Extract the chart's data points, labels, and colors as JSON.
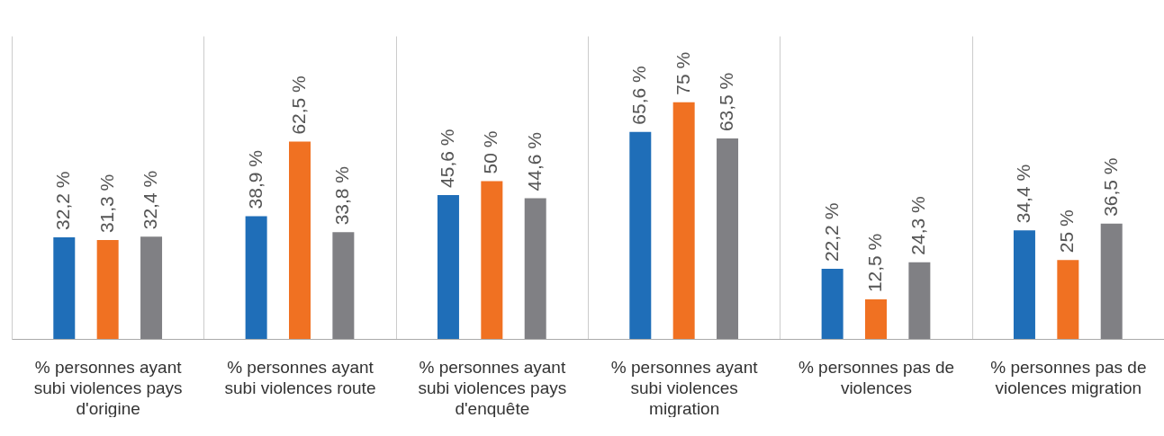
{
  "chart_data": {
    "type": "bar",
    "categories": [
      "% personnes ayant subi violences pays d'origine",
      "% personnes ayant subi violences route",
      "% personnes ayant subi violences pays d'enquête",
      "% personnes ayant subi violences migration",
      "% personnes pas de violences",
      "% personnes pas de violences migration"
    ],
    "series": [
      {
        "color": "#1f6eb8",
        "values": [
          32.2,
          38.9,
          45.6,
          65.6,
          22.2,
          34.4
        ],
        "value_labels": [
          "32,2 %",
          "38,9 %",
          "45,6 %",
          "65,6 %",
          "22,2 %",
          "34,4 %"
        ]
      },
      {
        "color": "#f07122",
        "values": [
          31.3,
          62.5,
          50,
          75,
          12.5,
          25
        ],
        "value_labels": [
          "31,3 %",
          "62,5 %",
          "50 %",
          "75 %",
          "12,5 %",
          "25 %"
        ]
      },
      {
        "color": "#808084",
        "values": [
          32.4,
          33.8,
          44.6,
          63.5,
          24.3,
          36.5
        ],
        "value_labels": [
          "32,4 %",
          "33,8 %",
          "44,6 %",
          "63,5 %",
          "24,3 %",
          "36,5 %"
        ]
      }
    ],
    "grid": "x"
  }
}
